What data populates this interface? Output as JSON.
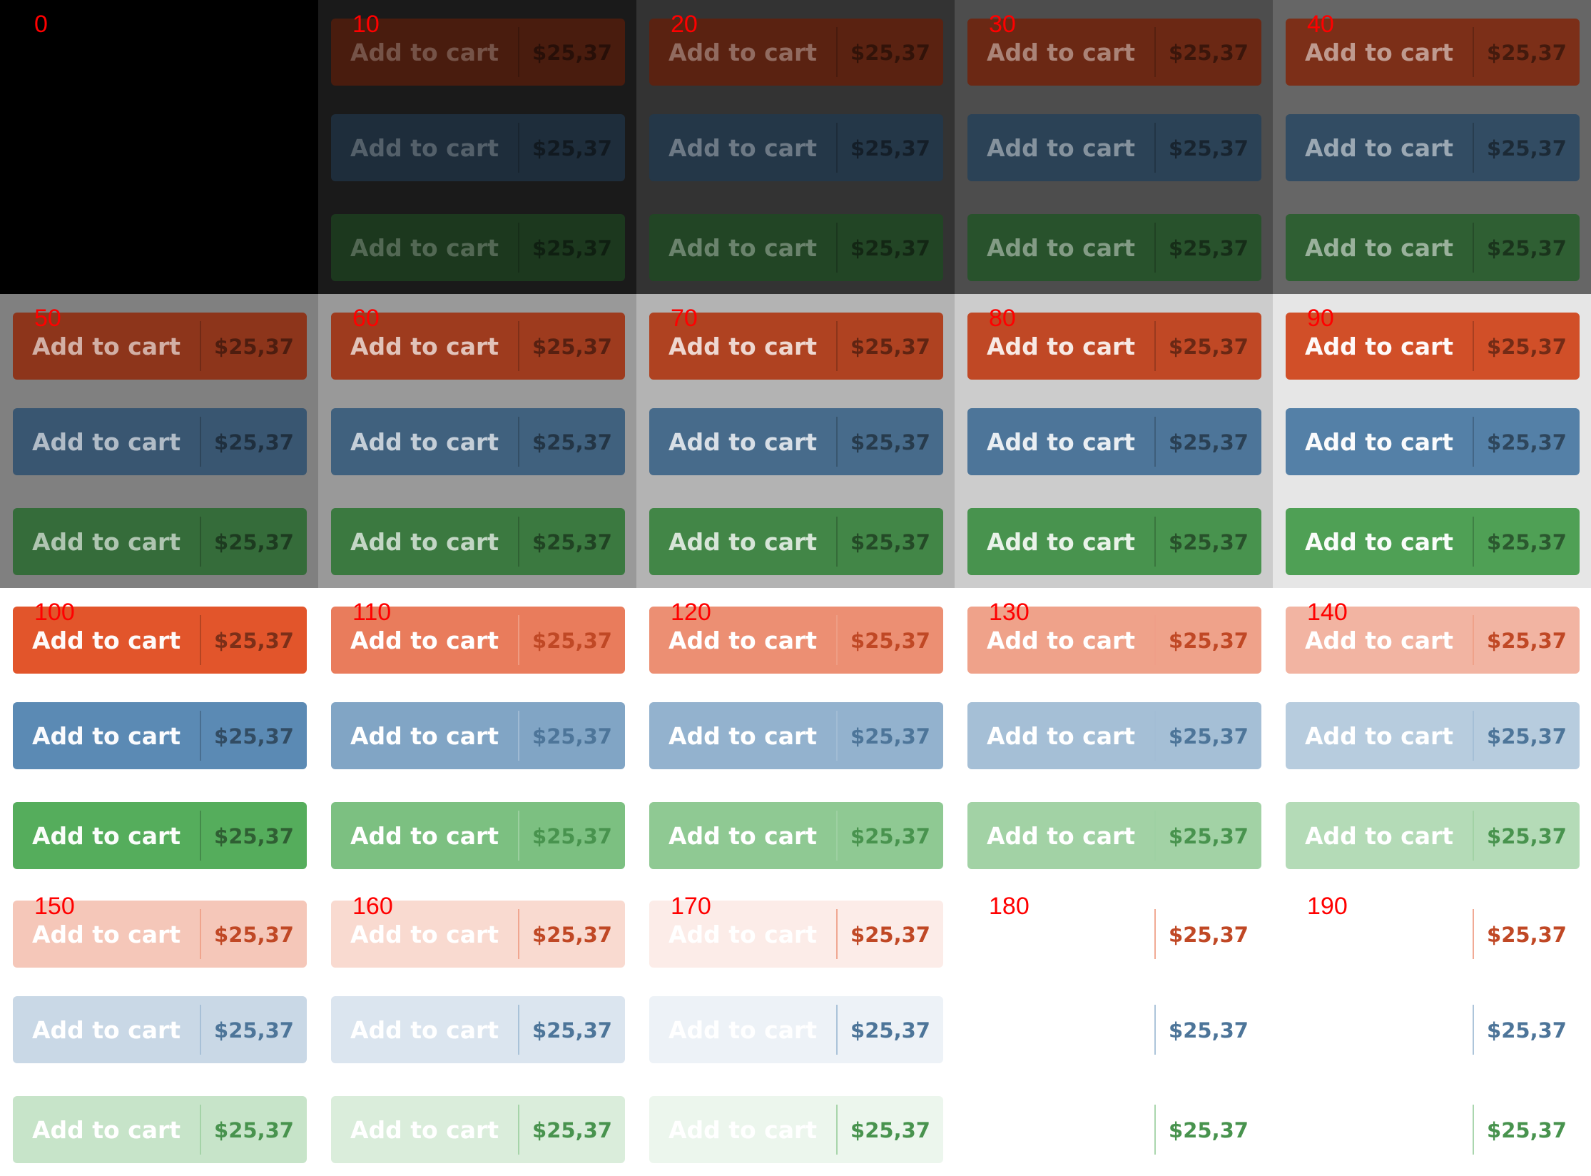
{
  "button": {
    "label": "Add to cart",
    "price": "$25,37"
  },
  "base_colors": {
    "orange": "#e2552b",
    "blue": "#5b8ab4",
    "green": "#55ad5c"
  },
  "rows": [
    {
      "levels": [
        "0",
        "10",
        "20",
        "30",
        "40"
      ]
    },
    {
      "levels": [
        "50",
        "60",
        "70",
        "80",
        "90"
      ]
    },
    {
      "levels": [
        "100",
        "110",
        "120",
        "130",
        "140"
      ]
    },
    {
      "levels": [
        "150",
        "160",
        "170",
        "180",
        "190"
      ]
    }
  ]
}
